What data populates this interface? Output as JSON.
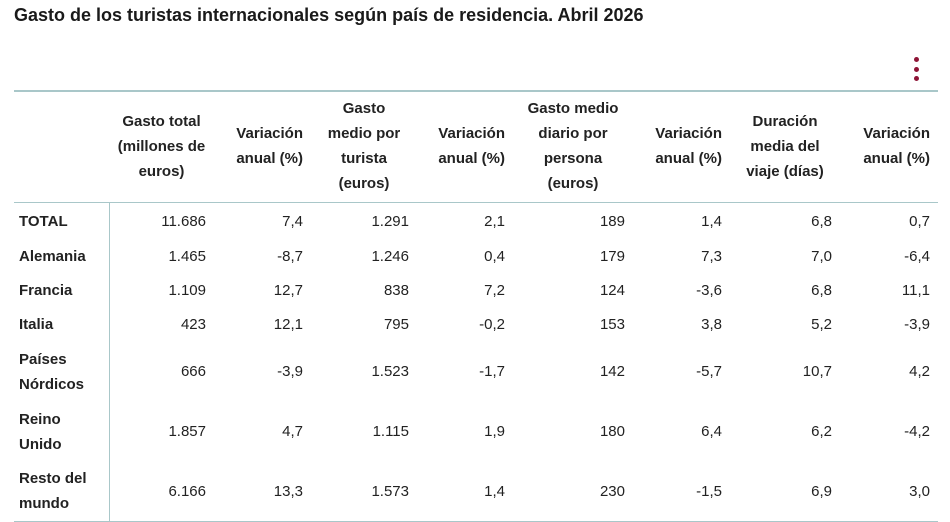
{
  "title": "Gasto de los turistas internacionales según país de residencia. Abril 2026",
  "menu_icon": "vertical-ellipsis-icon",
  "accent_color": "#8e1436",
  "rule_color": "#a9c7c9",
  "table": {
    "headers": [
      "",
      "Gasto total (millones de euros)",
      "Variación anual (%)",
      "Gasto medio por turista (euros)",
      "Variación anual (%)",
      "Gasto medio diario por persona (euros)",
      "Variación anual (%)",
      "Duración media del viaje (días)",
      "Variación anual (%)"
    ],
    "rows": [
      [
        "TOTAL",
        "11.686",
        "7,4",
        "1.291",
        "2,1",
        "189",
        "1,4",
        "6,8",
        "0,7"
      ],
      [
        "Alemania",
        "1.465",
        "-8,7",
        "1.246",
        "0,4",
        "179",
        "7,3",
        "7,0",
        "-6,4"
      ],
      [
        "Francia",
        "1.109",
        "12,7",
        "838",
        "7,2",
        "124",
        "-3,6",
        "6,8",
        "11,1"
      ],
      [
        "Italia",
        "423",
        "12,1",
        "795",
        "-0,2",
        "153",
        "3,8",
        "5,2",
        "-3,9"
      ],
      [
        "Países Nórdicos",
        "666",
        "-3,9",
        "1.523",
        "-1,7",
        "142",
        "-5,7",
        "10,7",
        "4,2"
      ],
      [
        "Reino Unido",
        "1.857",
        "4,7",
        "1.115",
        "1,9",
        "180",
        "6,4",
        "6,2",
        "-4,2"
      ],
      [
        "Resto del mundo",
        "6.166",
        "13,3",
        "1.573",
        "1,4",
        "230",
        "-1,5",
        "6,9",
        "3,0"
      ]
    ]
  }
}
